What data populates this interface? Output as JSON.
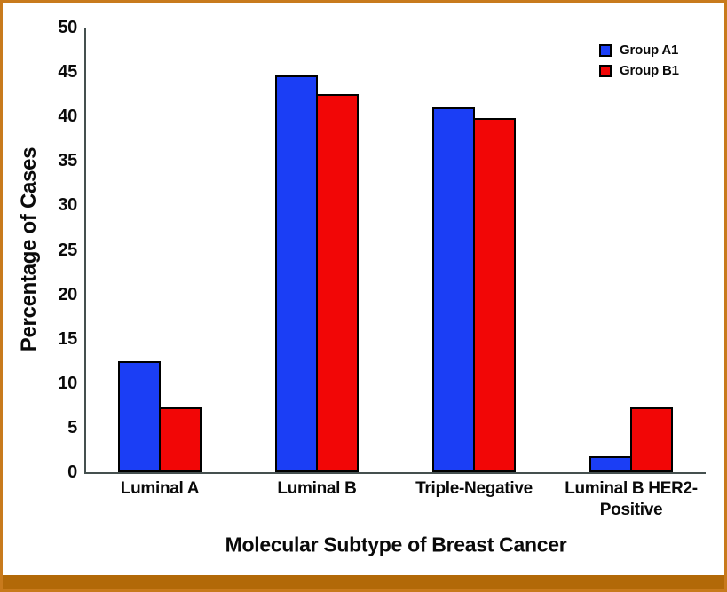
{
  "figure": {
    "background": "#ffffff",
    "border_color": "#c87a1c",
    "footer_bar_color": "#b26908",
    "axis_color": "#45504f",
    "text_color": "#0a0a0a"
  },
  "chart_data": {
    "type": "bar",
    "xlabel": "Molecular Subtype of Breast Cancer",
    "ylabel": "Percentage of Cases",
    "categories": [
      "Luminal A",
      "Luminal B",
      "Triple-Negative",
      "Luminal B HER2-Positive"
    ],
    "series": [
      {
        "name": "Group A1",
        "color": "#1b3ef5",
        "values": [
          12.5,
          44.6,
          41.0,
          1.8
        ]
      },
      {
        "name": "Group B1",
        "color": "#f20606",
        "values": [
          7.3,
          42.5,
          39.8,
          7.3
        ]
      }
    ],
    "ylim": [
      0,
      50
    ],
    "yticks": [
      0,
      5,
      10,
      15,
      20,
      25,
      30,
      35,
      40,
      45,
      50
    ],
    "grid": false,
    "legend_position": "top-right",
    "bar_border_color": "#000000"
  }
}
